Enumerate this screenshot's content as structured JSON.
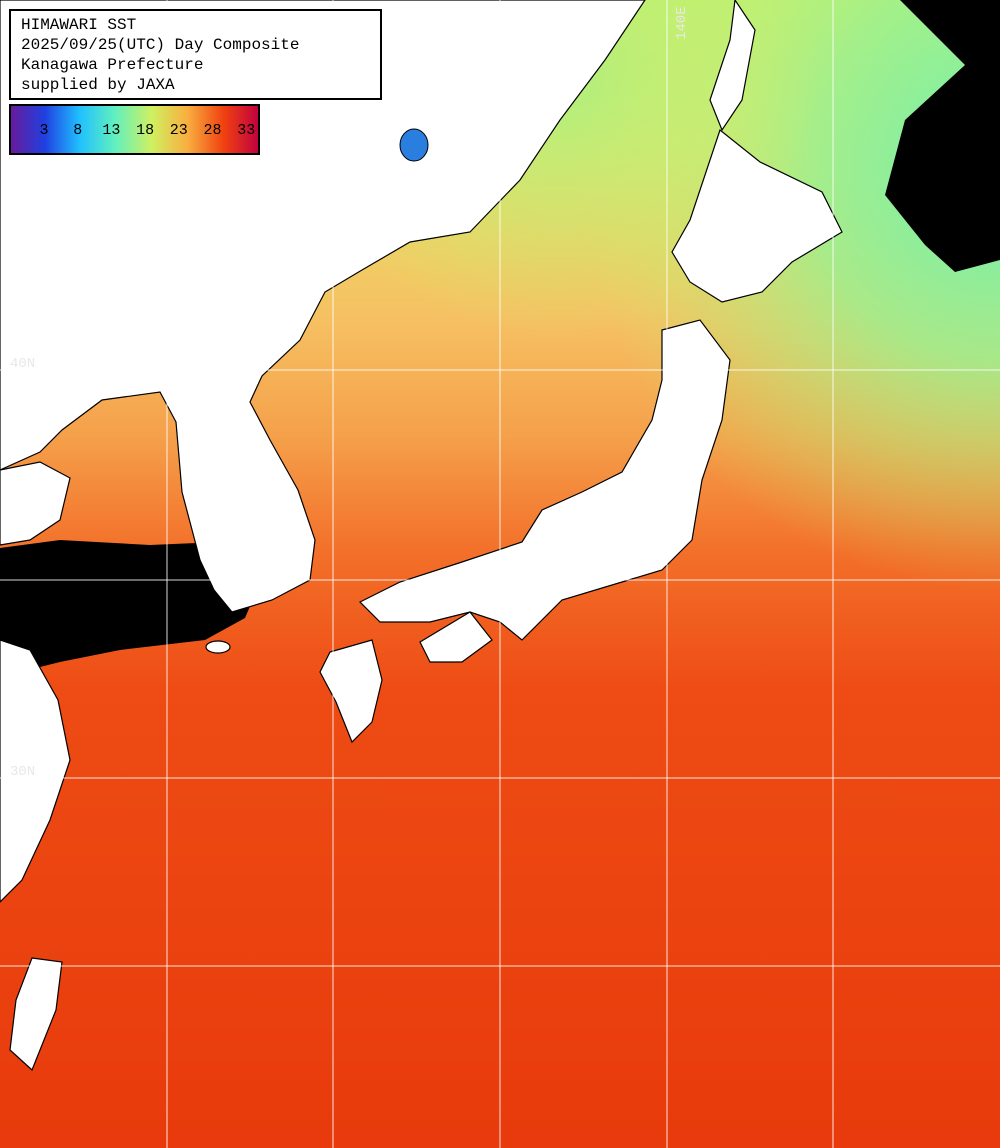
{
  "legend": {
    "lines": [
      "HIMAWARI SST",
      "2025/09/25(UTC) Day Composite",
      "Kanagawa Prefecture",
      "supplied by JAXA"
    ]
  },
  "colorbar": {
    "labels": [
      "3",
      "8",
      "13",
      "18",
      "23",
      "28",
      "33"
    ]
  },
  "grid_labels": {
    "lat_upper": "40N",
    "lat_lower": "30N",
    "lon": "140E"
  }
}
